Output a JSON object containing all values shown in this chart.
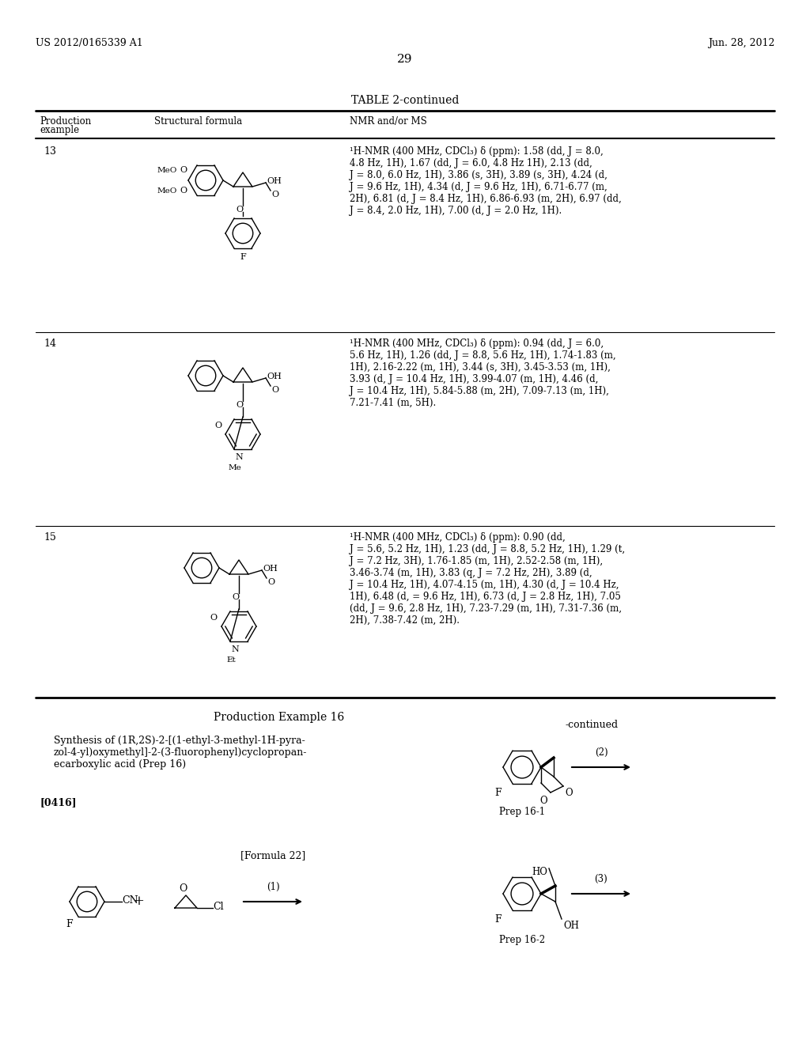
{
  "bg_color": "#ffffff",
  "header_left": "US 2012/0165339 A1",
  "header_right": "Jun. 28, 2012",
  "page_number": "29",
  "table_title": "TABLE 2-continued",
  "nmr13": "¹H-NMR (400 MHz, CDCl₃) δ (ppm): 1.58 (dd, J = 8.0,\n4.8 Hz, 1H), 1.67 (dd, J = 6.0, 4.8 Hz 1H), 2.13 (dd,\nJ = 8.0, 6.0 Hz, 1H), 3.86 (s, 3H), 3.89 (s, 3H), 4.24 (d,\nJ = 9.6 Hz, 1H), 4.34 (d, J = 9.6 Hz, 1H), 6.71-6.77 (m,\n2H), 6.81 (d, J = 8.4 Hz, 1H), 6.86-6.93 (m, 2H), 6.97 (dd,\nJ = 8.4, 2.0 Hz, 1H), 7.00 (d, J = 2.0 Hz, 1H).",
  "nmr14": "¹H-NMR (400 MHz, CDCl₃) δ (ppm): 0.94 (dd, J = 6.0,\n5.6 Hz, 1H), 1.26 (dd, J = 8.8, 5.6 Hz, 1H), 1.74-1.83 (m,\n1H), 2.16-2.22 (m, 1H), 3.44 (s, 3H), 3.45-3.53 (m, 1H),\n3.93 (d, J = 10.4 Hz, 1H), 3.99-4.07 (m, 1H), 4.46 (d,\nJ = 10.4 Hz, 1H), 5.84-5.88 (m, 2H), 7.09-7.13 (m, 1H),\n7.21-7.41 (m, 5H).",
  "nmr15": "¹H-NMR (400 MHz, CDCl₃) δ (ppm): 0.90 (dd,\nJ = 5.6, 5.2 Hz, 1H), 1.23 (dd, J = 8.8, 5.2 Hz, 1H), 1.29 (t,\nJ = 7.2 Hz, 3H), 1.76-1.85 (m, 1H), 2.52-2.58 (m, 1H),\n3.46-3.74 (m, 1H), 3.83 (q, J = 7.2 Hz, 2H), 3.89 (d,\nJ = 10.4 Hz, 1H), 4.07-4.15 (m, 1H), 4.30 (d, J = 10.4 Hz,\n1H), 6.48 (d, = 9.6 Hz, 1H), 6.73 (d, J = 2.8 Hz, 1H), 7.05\n(dd, J = 9.6, 2.8 Hz, 1H), 7.23-7.29 (m, 1H), 7.31-7.36 (m,\n2H), 7.38-7.42 (m, 2H).",
  "prod_example_16_title": "Production Example 16",
  "prod_example_16_synthesis": "Synthesis of (1R,2S)-2-[(1-ethyl-3-methyl-1H-pyra-\nzol-4-yl)oxymethyl]-2-(3-fluorophenyl)cyclopropan-\necarboxylic acid (Prep 16)",
  "paragraph_ref": "[0416]",
  "formula_label": "[Formula 22]",
  "continued_label": "-continued",
  "prep_16_1_label": "Prep 16-1",
  "prep_16_2_label": "Prep 16-2",
  "arrow_1_label": "(1)",
  "arrow_2_label": "(2)",
  "arrow_3_label": "(3)"
}
